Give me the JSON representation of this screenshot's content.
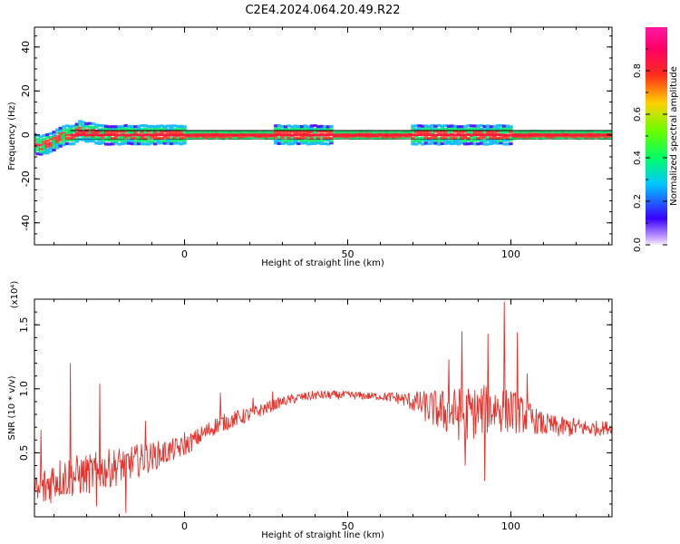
{
  "figure_title": "C2E4.2024.064.20.49.R22",
  "chart_data": [
    {
      "type": "heatmap",
      "title": "",
      "xlabel": "Height of straight line (km)",
      "ylabel": "Frequency (Hz)",
      "xlim": [
        -46,
        131
      ],
      "ylim": [
        -50,
        49
      ],
      "xticks": [
        0,
        50,
        100
      ],
      "yticks": [
        40,
        20,
        0,
        -20,
        -40
      ],
      "colorbar": {
        "label": "Normalized spectral amplitude",
        "range": [
          0.0,
          1.0
        ],
        "ticks": [
          0.0,
          0.2,
          0.4,
          0.6,
          0.8
        ],
        "colormap": "rainbow"
      },
      "band": {
        "center_hz": 0,
        "noisy_offset_start": [
          [
            -46,
            -4
          ],
          [
            -44,
            -5
          ],
          [
            -42,
            -4
          ],
          [
            -40,
            -3
          ],
          [
            -38,
            -1
          ],
          [
            -36,
            0
          ],
          [
            -34,
            0
          ],
          [
            -32,
            2
          ],
          [
            -30,
            1
          ],
          [
            -28,
            1
          ],
          [
            -26,
            0
          ],
          [
            -24,
            0
          ]
        ],
        "noisy_regions": [
          [
            -46,
            0
          ],
          [
            28,
            45
          ],
          [
            70,
            100
          ]
        ]
      }
    },
    {
      "type": "line",
      "title": "",
      "xlabel": "Height of straight line (km)",
      "ylabel": "SNR (10 * v/v)",
      "y_exponent_label": "(x10⁴)",
      "xlim": [
        -46,
        131
      ],
      "ylim": [
        0.0,
        1.7
      ],
      "xticks": [
        0,
        50,
        100
      ],
      "yticks": [
        0.5,
        1.0,
        1.5
      ],
      "series": [
        {
          "color": "#e8302a",
          "trend": [
            [
              -46,
              0.15
            ],
            [
              -40,
              0.3
            ],
            [
              -30,
              0.33
            ],
            [
              -20,
              0.4
            ],
            [
              -10,
              0.47
            ],
            [
              0,
              0.55
            ],
            [
              10,
              0.72
            ],
            [
              20,
              0.8
            ],
            [
              25,
              0.85
            ],
            [
              30,
              0.9
            ],
            [
              35,
              0.93
            ],
            [
              40,
              0.95
            ],
            [
              50,
              0.95
            ],
            [
              60,
              0.94
            ],
            [
              65,
              0.93
            ],
            [
              70,
              0.9
            ],
            [
              75,
              0.85
            ],
            [
              80,
              0.82
            ],
            [
              85,
              0.8
            ],
            [
              90,
              0.82
            ],
            [
              95,
              0.85
            ],
            [
              100,
              0.83
            ],
            [
              105,
              0.78
            ],
            [
              110,
              0.72
            ],
            [
              115,
              0.7
            ],
            [
              120,
              0.7
            ],
            [
              125,
              0.69
            ],
            [
              131,
              0.7
            ]
          ],
          "amplitude": [
            [
              -46,
              0.18
            ],
            [
              -20,
              0.15
            ],
            [
              0,
              0.08
            ],
            [
              20,
              0.06
            ],
            [
              30,
              0.04
            ],
            [
              60,
              0.03
            ],
            [
              68,
              0.06
            ],
            [
              75,
              0.14
            ],
            [
              85,
              0.22
            ],
            [
              100,
              0.18
            ],
            [
              108,
              0.1
            ],
            [
              131,
              0.05
            ]
          ],
          "peaks": [
            [
              -44,
              0.68
            ],
            [
              -35,
              1.2
            ],
            [
              -26,
              1.04
            ],
            [
              -12,
              0.75
            ],
            [
              0,
              0.66
            ],
            [
              11,
              0.97
            ],
            [
              21,
              0.93
            ],
            [
              27,
              0.98
            ],
            [
              81,
              1.23
            ],
            [
              85,
              1.45
            ],
            [
              93,
              1.43
            ],
            [
              98,
              1.68
            ],
            [
              102,
              1.44
            ],
            [
              105,
              1.12
            ]
          ],
          "dips": [
            [
              92,
              0.28
            ],
            [
              86,
              0.4
            ],
            [
              -27,
              0.08
            ],
            [
              -18,
              0.03
            ]
          ]
        }
      ]
    }
  ]
}
